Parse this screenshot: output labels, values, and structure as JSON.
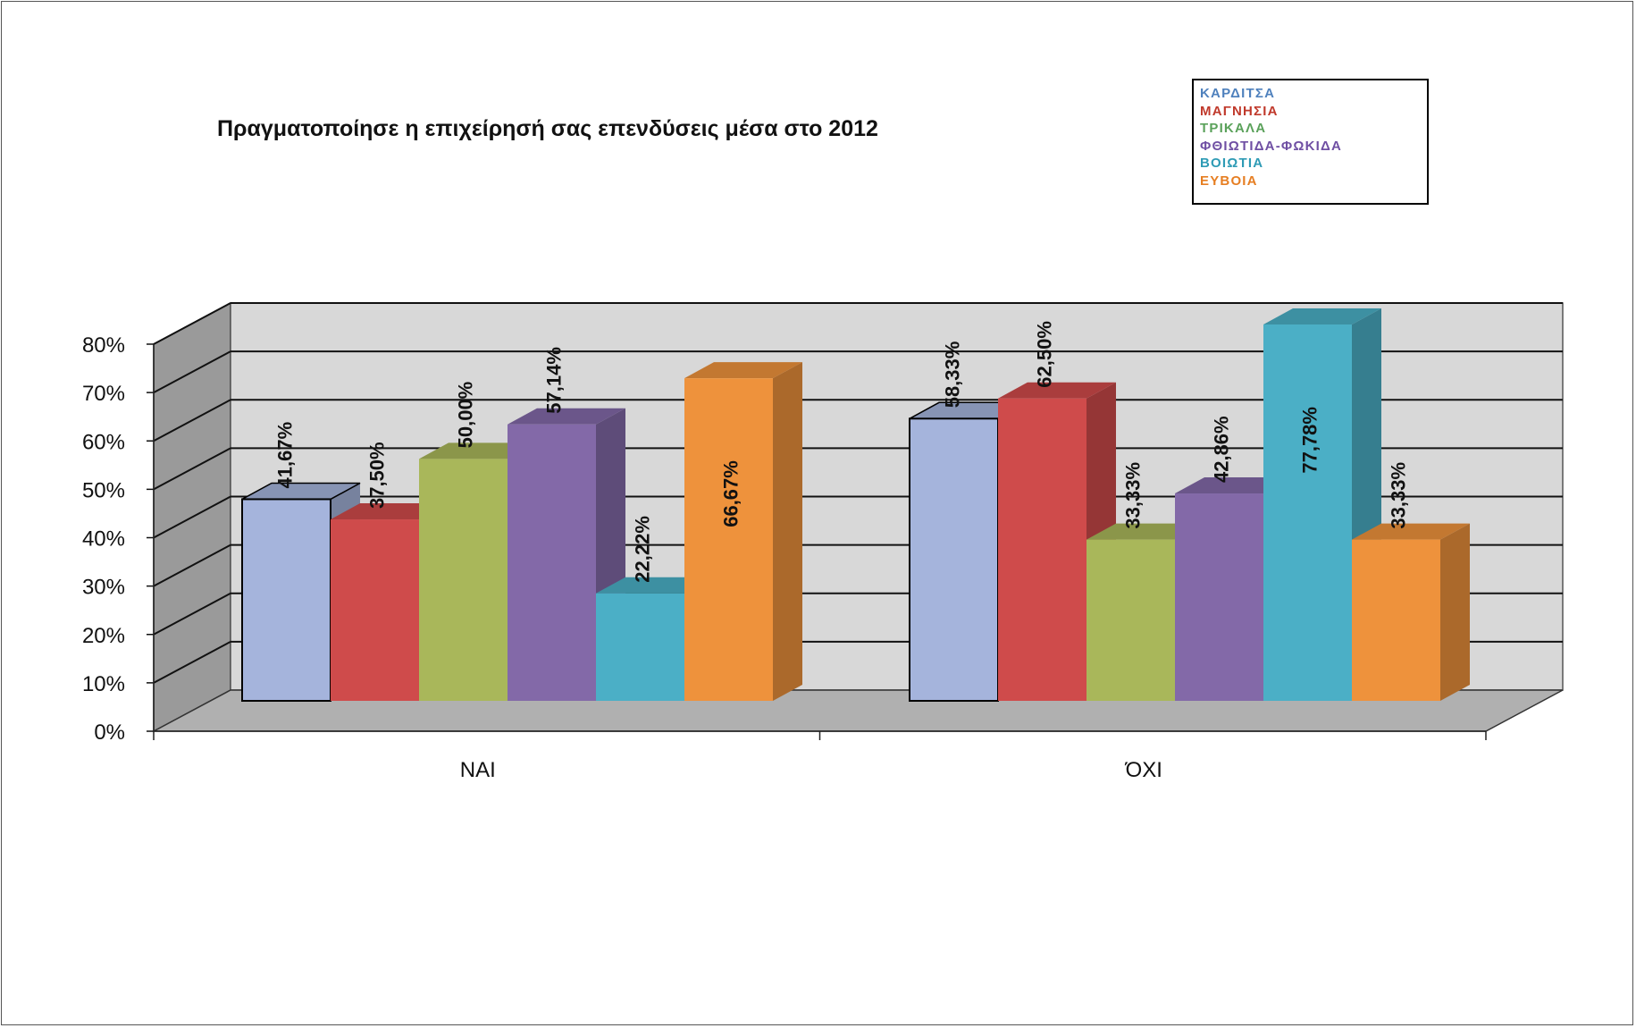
{
  "chart_data": {
    "type": "bar",
    "title": "Πραγματοποίησε η επιχείρησή σας επενδύσεις μέσα στο 2012",
    "categories": [
      "ΝΑΙ",
      "ΌΧΙ"
    ],
    "ylim": [
      0,
      80
    ],
    "yticks": [
      "0%",
      "10%",
      "20%",
      "30%",
      "40%",
      "50%",
      "60%",
      "70%",
      "80%"
    ],
    "series": [
      {
        "name": "ΚΑΡΔΙΤΣΑ",
        "values": [
          41.67,
          58.33
        ],
        "labels": [
          "41,67%",
          "58,33%"
        ],
        "color": "#a5b4dc",
        "legend_color": "#4f81bd"
      },
      {
        "name": "ΜΑΓΝΗΣΙΑ",
        "values": [
          37.5,
          62.5
        ],
        "labels": [
          "37,50%",
          "62,50%"
        ],
        "color": "#cf4b4b",
        "legend_color": "#c0392b"
      },
      {
        "name": "ΤΡΙΚΑΛΑ",
        "values": [
          50.0,
          33.33
        ],
        "labels": [
          "50,00%",
          "33,33%"
        ],
        "color": "#a9b75a",
        "legend_color": "#5aa15a"
      },
      {
        "name": "ΦΘΙΩΤΙΔΑ-ΦΩΚΙΔΑ",
        "values": [
          57.14,
          42.86
        ],
        "labels": [
          "57,14%",
          "42,86%"
        ],
        "color": "#8369a8",
        "legend_color": "#6f4fa3"
      },
      {
        "name": "ΒΟΙΩΤΙΑ",
        "values": [
          22.22,
          77.78
        ],
        "labels": [
          "22,22%",
          "77,78%"
        ],
        "color": "#4bafc6",
        "legend_color": "#2e9bb5"
      },
      {
        "name": "ΕΥΒΟΙΑ",
        "values": [
          66.67,
          33.33
        ],
        "labels": [
          "66,67%",
          "33,33%"
        ],
        "color": "#ee923c",
        "legend_color": "#e67e22"
      }
    ],
    "grid": true,
    "legend_position": "top-right",
    "style": "3d-clustered-column"
  }
}
